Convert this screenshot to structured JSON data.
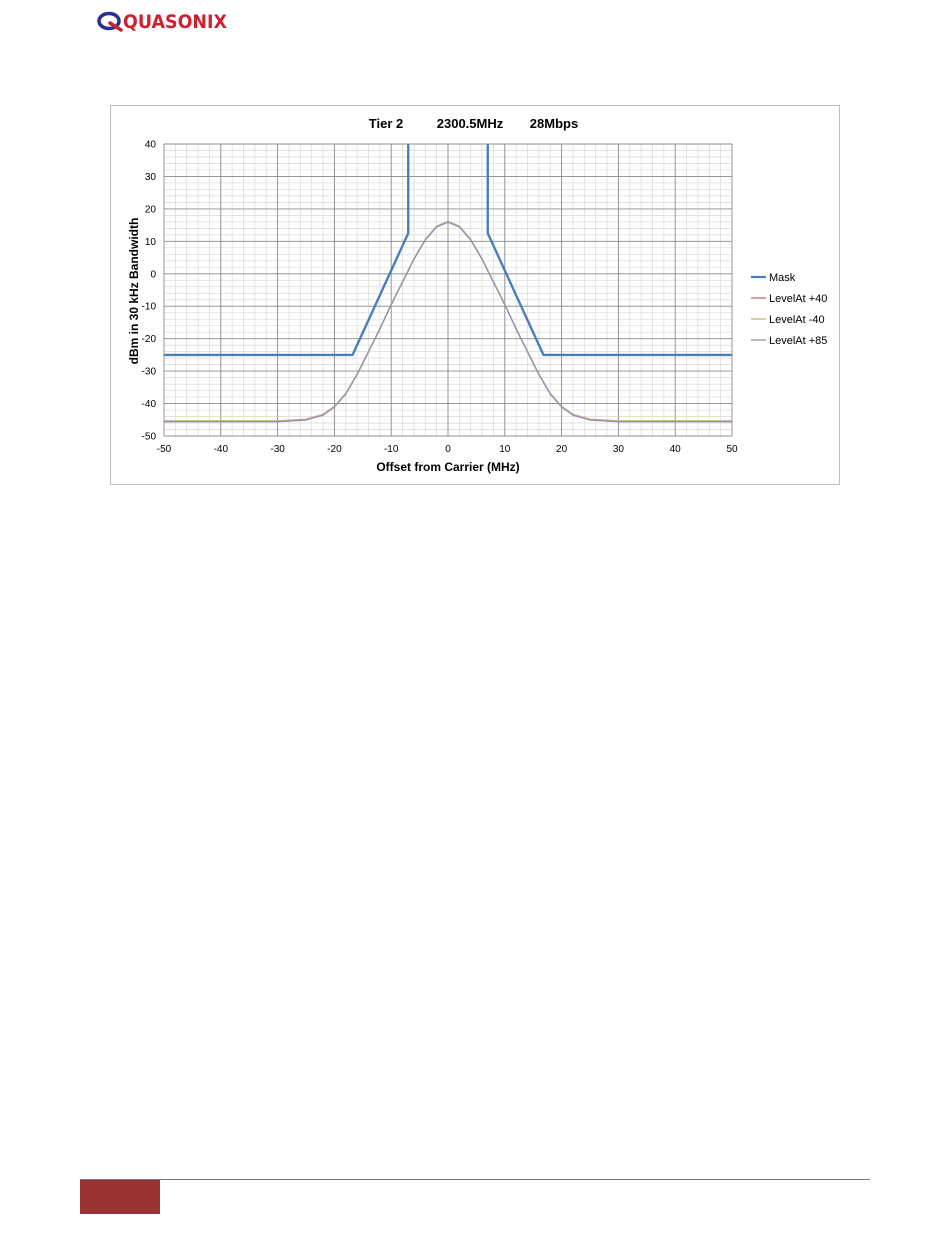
{
  "brand": {
    "logo_text": "QUASONIX",
    "colors": {
      "logo": "#2b2f8f",
      "accent": "#d02030",
      "footer_block": "#9a3434"
    }
  },
  "chart_data": {
    "type": "line",
    "title_parts": [
      "Tier 2",
      "2300.5MHz",
      "28Mbps"
    ],
    "xlabel": "Offset from Carrier (MHz)",
    "ylabel": "dBm in 30 kHz Bandwidth",
    "xlim": [
      -50,
      50
    ],
    "ylim": [
      -50,
      40
    ],
    "x_ticks": [
      -50,
      -40,
      -30,
      -20,
      -10,
      0,
      10,
      20,
      30,
      40,
      50
    ],
    "y_ticks": [
      -50,
      -40,
      -30,
      -20,
      -10,
      0,
      10,
      20,
      30,
      40
    ],
    "grid": true,
    "legend": {
      "position": "right"
    },
    "series": [
      {
        "name": "Mask",
        "color": "#4a7ebb",
        "x": [
          -50,
          -16.8,
          -7.0,
          -7.0,
          7.0,
          7.0,
          16.8,
          50
        ],
        "y": [
          -25,
          -25,
          12.5,
          40,
          40,
          12.5,
          -25,
          -25
        ],
        "gap_after": [
          3
        ]
      },
      {
        "name": "LevelAt +40",
        "color": "#b5706e",
        "x": [
          -50,
          -40,
          -30,
          -25,
          -22,
          -20,
          -18,
          -16,
          -14,
          -12,
          -10,
          -8,
          -6,
          -4,
          -2,
          0,
          2,
          4,
          6,
          8,
          10,
          12,
          14,
          16,
          18,
          20,
          22,
          25,
          30,
          40,
          50
        ],
        "y": [
          -45.5,
          -45.5,
          -45.5,
          -45,
          -43.5,
          -41,
          -37,
          -31,
          -24,
          -17,
          -9.5,
          -2.5,
          4.5,
          10.5,
          14.5,
          16,
          14.5,
          10.5,
          4.5,
          -2.5,
          -9.5,
          -17,
          -24,
          -31,
          -37,
          -41,
          -43.5,
          -45,
          -45.5,
          -45.5,
          -45.5
        ]
      },
      {
        "name": "LevelAt -40",
        "color": "#c9b27a",
        "x": [
          -50,
          -40,
          -30,
          -25,
          -22,
          -20,
          -18,
          -16,
          -14,
          -12,
          -10,
          -8,
          -6,
          -4,
          -2,
          0,
          2,
          4,
          6,
          8,
          10,
          12,
          14,
          16,
          18,
          20,
          22,
          25,
          30,
          40,
          50
        ],
        "y": [
          -45.3,
          -45.3,
          -45.3,
          -44.8,
          -43.3,
          -40.8,
          -36.8,
          -30.8,
          -23.8,
          -16.8,
          -9.3,
          -2.3,
          4.7,
          10.7,
          14.7,
          16.2,
          14.7,
          10.7,
          4.7,
          -2.3,
          -9.3,
          -16.8,
          -23.8,
          -30.8,
          -36.8,
          -40.8,
          -43.3,
          -44.8,
          -45.3,
          -45.3,
          -45.3
        ]
      },
      {
        "name": "LevelAt +85",
        "color": "#8f8fb8",
        "x": [
          -50,
          -40,
          -30,
          -25,
          -22,
          -20,
          -18,
          -16,
          -14,
          -12,
          -10,
          -8,
          -6,
          -4,
          -2,
          0,
          2,
          4,
          6,
          8,
          10,
          12,
          14,
          16,
          18,
          20,
          22,
          25,
          30,
          40,
          50
        ],
        "y": [
          -45.6,
          -45.6,
          -45.6,
          -45.1,
          -43.6,
          -41.1,
          -37.1,
          -31.1,
          -24.1,
          -17.1,
          -9.6,
          -2.6,
          4.4,
          10.4,
          14.4,
          15.9,
          14.4,
          10.4,
          4.4,
          -2.6,
          -9.6,
          -17.1,
          -24.1,
          -31.1,
          -37.1,
          -41.1,
          -43.6,
          -45.1,
          -45.6,
          -45.6,
          -45.6
        ]
      }
    ]
  }
}
